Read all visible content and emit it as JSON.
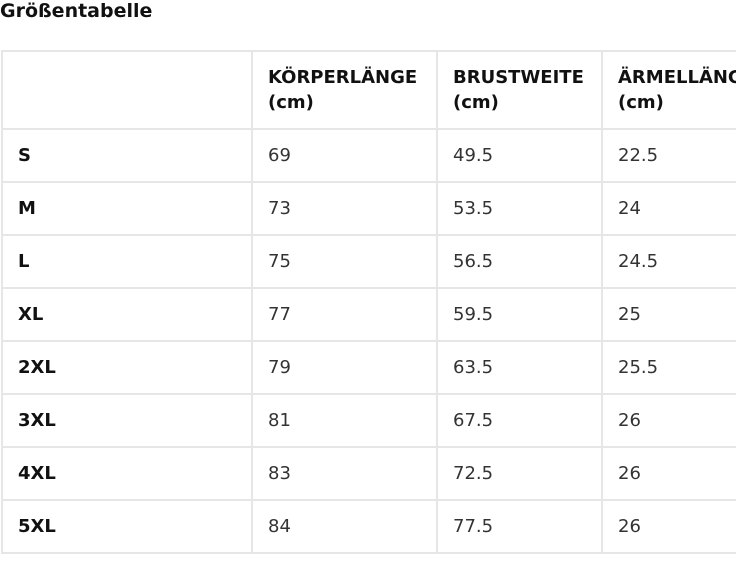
{
  "page": {
    "title": "Größentabelle"
  },
  "table": {
    "headers": [
      {
        "line1": "",
        "line2": ""
      },
      {
        "line1": "KÖRPERLÄNGE",
        "line2": "(cm)"
      },
      {
        "line1": "BRUSTWEITE",
        "line2": "(cm)"
      },
      {
        "line1": "ÄRMELLÄNGE",
        "line2": "(cm)"
      }
    ],
    "rows": [
      [
        "S",
        "69",
        "49.5",
        "22.5"
      ],
      [
        "M",
        "73",
        "53.5",
        "24"
      ],
      [
        "L",
        "75",
        "56.5",
        "24.5"
      ],
      [
        "XL",
        "77",
        "59.5",
        "25"
      ],
      [
        "2XL",
        "79",
        "63.5",
        "25.5"
      ],
      [
        "3XL",
        "81",
        "67.5",
        "26"
      ],
      [
        "4XL",
        "83",
        "72.5",
        "26"
      ],
      [
        "5XL",
        "84",
        "77.5",
        "26"
      ]
    ]
  },
  "colors": {
    "border": "#e6e6e6",
    "text": "#333333",
    "heading": "#111111",
    "background": "#ffffff"
  }
}
